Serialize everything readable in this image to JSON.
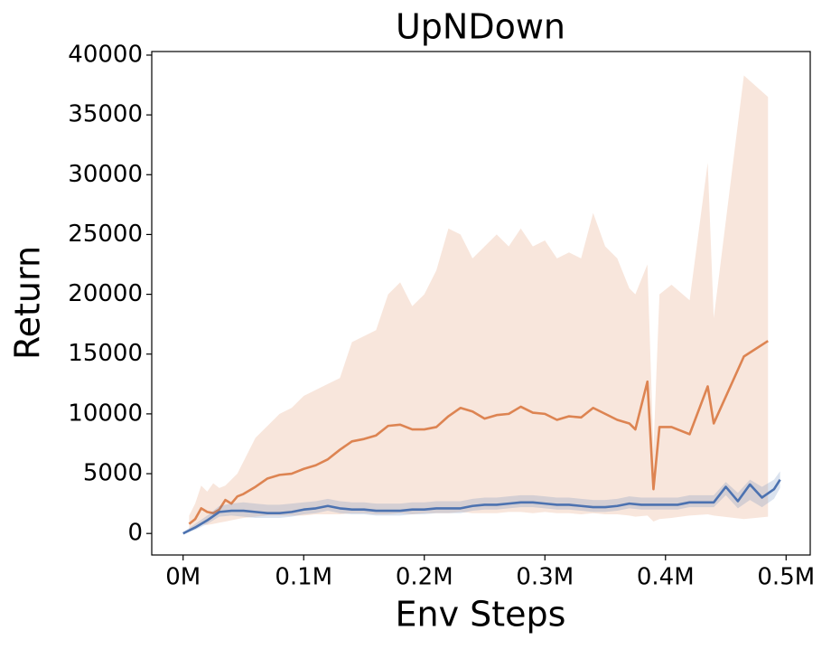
{
  "chart_data": {
    "type": "line",
    "title": "UpNDown",
    "x_label": "Env Steps",
    "y_label": "Return",
    "xlim": [
      -26000,
      520000
    ],
    "ylim": [
      -1800,
      40300
    ],
    "xticks": [
      {
        "value": 0,
        "label": "0M"
      },
      {
        "value": 100000,
        "label": "0.1M"
      },
      {
        "value": 200000,
        "label": "0.2M"
      },
      {
        "value": 300000,
        "label": "0.3M"
      },
      {
        "value": 400000,
        "label": "0.4M"
      },
      {
        "value": 500000,
        "label": "0.5M"
      }
    ],
    "yticks": [
      0,
      5000,
      10000,
      15000,
      20000,
      25000,
      30000,
      35000,
      40000
    ],
    "grid": false,
    "series": [
      {
        "color": "#dd8452",
        "x": [
          5000,
          10000,
          15000,
          20000,
          25000,
          30000,
          35000,
          40000,
          45000,
          50000,
          60000,
          70000,
          80000,
          90000,
          100000,
          110000,
          120000,
          130000,
          140000,
          150000,
          160000,
          170000,
          180000,
          190000,
          200000,
          210000,
          220000,
          230000,
          240000,
          250000,
          260000,
          270000,
          280000,
          290000,
          300000,
          310000,
          320000,
          330000,
          340000,
          350000,
          360000,
          370000,
          375000,
          385000,
          390000,
          395000,
          405000,
          420000,
          435000,
          440000,
          465000,
          485000
        ],
        "values": [
          800,
          1200,
          2100,
          1800,
          1700,
          2000,
          2800,
          2500,
          3100,
          3300,
          3900,
          4600,
          4900,
          5000,
          5400,
          5700,
          6200,
          7000,
          7700,
          7900,
          8200,
          9000,
          9100,
          8700,
          8700,
          8900,
          9800,
          10500,
          10200,
          9600,
          9900,
          10000,
          10600,
          10100,
          10000,
          9500,
          9800,
          9700,
          10500,
          10000,
          9500,
          9200,
          8700,
          12700,
          3700,
          8900,
          8900,
          8300,
          12300,
          9200,
          14800,
          16100
        ],
        "lower": [
          300,
          500,
          800,
          700,
          800,
          900,
          1000,
          1100,
          1200,
          1300,
          1400,
          1500,
          1500,
          1500,
          1500,
          1600,
          1600,
          1600,
          1700,
          1700,
          1600,
          1600,
          1700,
          1600,
          1700,
          1700,
          1700,
          1800,
          1700,
          1700,
          1700,
          1800,
          1800,
          1700,
          1800,
          1700,
          1700,
          1600,
          1700,
          1600,
          1600,
          1500,
          1400,
          1500,
          1000,
          1200,
          1300,
          1500,
          1600,
          1500,
          1200,
          1400
        ],
        "upper": [
          1500,
          2500,
          4000,
          3500,
          4200,
          3800,
          4000,
          4500,
          5000,
          6000,
          8000,
          9000,
          10000,
          10500,
          11500,
          12000,
          12500,
          13000,
          16000,
          16500,
          17000,
          20000,
          21000,
          19000,
          20000,
          22000,
          25500,
          25000,
          23000,
          24000,
          25000,
          24000,
          25500,
          24000,
          24500,
          23000,
          23500,
          23000,
          26800,
          24000,
          23000,
          20500,
          20000,
          22500,
          7000,
          20000,
          20800,
          19500,
          31000,
          18000,
          38300,
          36500
        ]
      },
      {
        "color": "#4c72b0",
        "x": [
          0,
          10000,
          20000,
          30000,
          40000,
          50000,
          60000,
          70000,
          80000,
          90000,
          100000,
          110000,
          120000,
          130000,
          140000,
          150000,
          160000,
          170000,
          180000,
          190000,
          200000,
          210000,
          220000,
          230000,
          240000,
          250000,
          260000,
          270000,
          280000,
          290000,
          300000,
          310000,
          320000,
          330000,
          340000,
          350000,
          360000,
          370000,
          380000,
          390000,
          400000,
          410000,
          420000,
          430000,
          440000,
          450000,
          460000,
          470000,
          480000,
          490000,
          495000
        ],
        "values": [
          0,
          500,
          1100,
          1800,
          1900,
          1900,
          1800,
          1700,
          1700,
          1800,
          2000,
          2100,
          2300,
          2100,
          2000,
          2000,
          1900,
          1900,
          1900,
          2000,
          2000,
          2100,
          2100,
          2100,
          2300,
          2400,
          2400,
          2500,
          2600,
          2600,
          2500,
          2400,
          2400,
          2300,
          2200,
          2200,
          2300,
          2500,
          2400,
          2400,
          2400,
          2400,
          2600,
          2600,
          2600,
          3900,
          2700,
          4100,
          3000,
          3700,
          4500
        ],
        "lower": [
          0,
          300,
          800,
          1400,
          1500,
          1400,
          1300,
          1300,
          1300,
          1400,
          1600,
          1700,
          1900,
          1700,
          1600,
          1600,
          1500,
          1500,
          1500,
          1600,
          1600,
          1700,
          1700,
          1700,
          1900,
          2000,
          2000,
          2100,
          2200,
          2200,
          2100,
          2000,
          2000,
          1900,
          1800,
          1800,
          1900,
          2100,
          2000,
          2000,
          2000,
          2000,
          2200,
          2200,
          2200,
          3200,
          2100,
          2800,
          2200,
          2900,
          3800
        ],
        "upper": [
          100,
          800,
          1500,
          2300,
          2500,
          2600,
          2500,
          2400,
          2400,
          2500,
          2600,
          2700,
          2900,
          2700,
          2600,
          2600,
          2500,
          2500,
          2500,
          2600,
          2600,
          2700,
          2700,
          2700,
          2900,
          3000,
          3000,
          3100,
          3200,
          3200,
          3100,
          3000,
          3000,
          2900,
          2800,
          2800,
          2900,
          3100,
          3000,
          3000,
          3000,
          3000,
          3200,
          3200,
          3200,
          4300,
          3400,
          4500,
          3900,
          4500,
          5200
        ]
      }
    ]
  }
}
